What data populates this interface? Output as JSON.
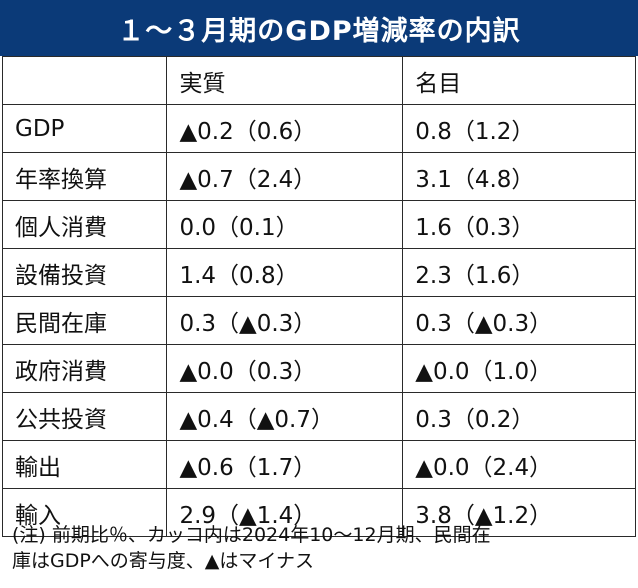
{
  "title": "１～３月期のGDP増減率の内訳",
  "columns": [
    "",
    "実質",
    "名目"
  ],
  "rows": [
    {
      "label": "GDP",
      "real": "▲0.2（0.6）",
      "nominal": "0.8（1.2）"
    },
    {
      "label": "年率換算",
      "real": "▲0.7（2.4）",
      "nominal": "3.1（4.8）"
    },
    {
      "label": "個人消費",
      "real": "0.0（0.1）",
      "nominal": "1.6（0.3）"
    },
    {
      "label": "設備投資",
      "real": "1.4（0.8）",
      "nominal": "2.3（1.6）"
    },
    {
      "label": "民間在庫",
      "real": "0.3（▲0.3）",
      "nominal": "0.3（▲0.3）"
    },
    {
      "label": "政府消費",
      "real": "▲0.0（0.3）",
      "nominal": "▲0.0（1.0）"
    },
    {
      "label": "公共投資",
      "real": "▲0.4（▲0.7）",
      "nominal": "0.3（0.2）"
    },
    {
      "label": "輸出",
      "real": "▲0.6（1.7）",
      "nominal": "▲0.0（2.4）"
    },
    {
      "label": "輸入",
      "real": "2.9（▲1.4）",
      "nominal": "3.8（▲1.2）"
    }
  ],
  "note_line1": "(注) 前期比％、カッコ内は2024年10～12月期、民間在",
  "note_line2": "庫はGDPへの寄与度、▲はマイナス",
  "colors": {
    "header_bg": "#0b3a78",
    "header_text": "#ffffff",
    "border": "#2a2a2a"
  }
}
